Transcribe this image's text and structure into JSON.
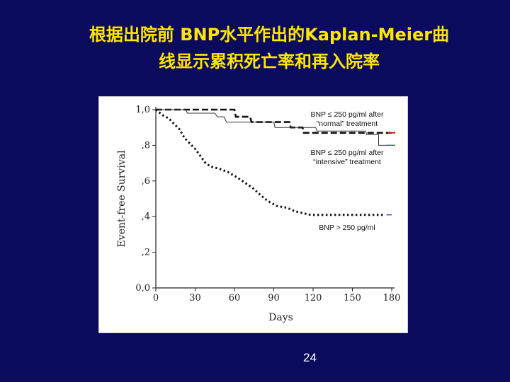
{
  "slide": {
    "title_line1": "根据出院前 BNP水平作出的Kaplan-Meier曲",
    "title_line2": "线显示累积死亡率和再入院率",
    "page_number": "24"
  },
  "colors": {
    "background": "#0b0b5e",
    "title": "#ffe600",
    "red_marker": "#cc2222",
    "blue_marker": "#3355cc"
  },
  "chart_data": {
    "type": "line",
    "title": "",
    "xlabel": "Days",
    "ylabel": "Event-free Survival",
    "xlim": [
      0,
      180
    ],
    "ylim": [
      0,
      1
    ],
    "x_ticks": [
      0,
      30,
      60,
      90,
      120,
      150,
      180
    ],
    "x_tick_labels": [
      "0",
      "30",
      "60",
      "90",
      "120",
      "150",
      "180"
    ],
    "y_ticks": [
      0,
      0.2,
      0.4,
      0.6,
      0.8,
      1.0
    ],
    "y_tick_labels": [
      "0,0",
      ",2",
      ",4",
      ",6",
      ",8",
      "1,0"
    ],
    "grid": false,
    "series": [
      {
        "name": "BNP ≤ 250 pg/ml after \"normal\" treatment",
        "style": "dashed",
        "points": [
          [
            0,
            1.0
          ],
          [
            45,
            1.0
          ],
          [
            60,
            1.0
          ],
          [
            61,
            0.96
          ],
          [
            72,
            0.96
          ],
          [
            73,
            0.93
          ],
          [
            102,
            0.93
          ],
          [
            103,
            0.9
          ],
          [
            112,
            0.9
          ],
          [
            113,
            0.87
          ],
          [
            180,
            0.87
          ]
        ]
      },
      {
        "name": "BNP ≤ 250 pg/ml after \"intensive\" treatment",
        "style": "solid",
        "points": [
          [
            0,
            1.0
          ],
          [
            23,
            1.0
          ],
          [
            24,
            0.98
          ],
          [
            45,
            0.98
          ],
          [
            47,
            0.96
          ],
          [
            52,
            0.96
          ],
          [
            54,
            0.93
          ],
          [
            90,
            0.93
          ],
          [
            91,
            0.9
          ],
          [
            122,
            0.9
          ],
          [
            123,
            0.88
          ],
          [
            160,
            0.88
          ],
          [
            161,
            0.86
          ],
          [
            170,
            0.86
          ],
          [
            170,
            0.8
          ],
          [
            180,
            0.8
          ]
        ]
      },
      {
        "name": "BNP > 250 pg/ml",
        "style": "dotted",
        "points": [
          [
            0,
            1.0
          ],
          [
            5,
            0.97
          ],
          [
            10,
            0.95
          ],
          [
            14,
            0.92
          ],
          [
            18,
            0.89
          ],
          [
            22,
            0.84
          ],
          [
            26,
            0.81
          ],
          [
            30,
            0.78
          ],
          [
            34,
            0.74
          ],
          [
            38,
            0.7
          ],
          [
            42,
            0.68
          ],
          [
            48,
            0.67
          ],
          [
            55,
            0.65
          ],
          [
            62,
            0.62
          ],
          [
            68,
            0.59
          ],
          [
            74,
            0.56
          ],
          [
            80,
            0.52
          ],
          [
            85,
            0.49
          ],
          [
            92,
            0.46
          ],
          [
            100,
            0.45
          ],
          [
            106,
            0.43
          ],
          [
            112,
            0.42
          ],
          [
            118,
            0.41
          ],
          [
            125,
            0.41
          ],
          [
            150,
            0.41
          ],
          [
            175,
            0.41
          ]
        ]
      }
    ],
    "annotations": [
      {
        "line1": "BNP ≤ 250 pg/ml after",
        "line2": "“normal” treatment"
      },
      {
        "line1": "BNP ≤ 250 pg/ml after",
        "line2": "“intensive” treatment"
      },
      {
        "line1": "BNP > 250 pg/ml",
        "line2": ""
      }
    ]
  }
}
